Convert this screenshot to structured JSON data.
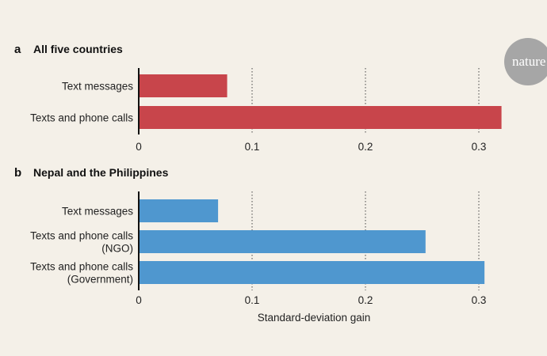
{
  "logo": {
    "text": "nature",
    "color": "#a6a6a6"
  },
  "colors": {
    "panel_a": "#c8454b",
    "panel_b": "#4f97cf",
    "background": "#f4f0e8"
  },
  "chart_data": [
    {
      "type": "bar",
      "orientation": "horizontal",
      "panel": "a",
      "title": "All five countries",
      "categories": [
        "Text messages",
        "Texts and phone calls"
      ],
      "values": [
        0.078,
        0.32
      ],
      "xlim": [
        0,
        0.32
      ],
      "xticks": [
        "0",
        "0.1",
        "0.2",
        "0.3"
      ],
      "grid": "dotted vertical",
      "xlabel": ""
    },
    {
      "type": "bar",
      "orientation": "horizontal",
      "panel": "b",
      "title": "Nepal and the Philippines",
      "categories": [
        [
          "Text messages"
        ],
        [
          "Texts and phone calls",
          "(NGO)"
        ],
        [
          "Texts and phone calls",
          "(Government)"
        ]
      ],
      "values": [
        0.07,
        0.253,
        0.305
      ],
      "xlim": [
        0,
        0.32
      ],
      "xticks": [
        "0",
        "0.1",
        "0.2",
        "0.3"
      ],
      "grid": "dotted vertical",
      "xlabel": "Standard-deviation gain"
    }
  ]
}
